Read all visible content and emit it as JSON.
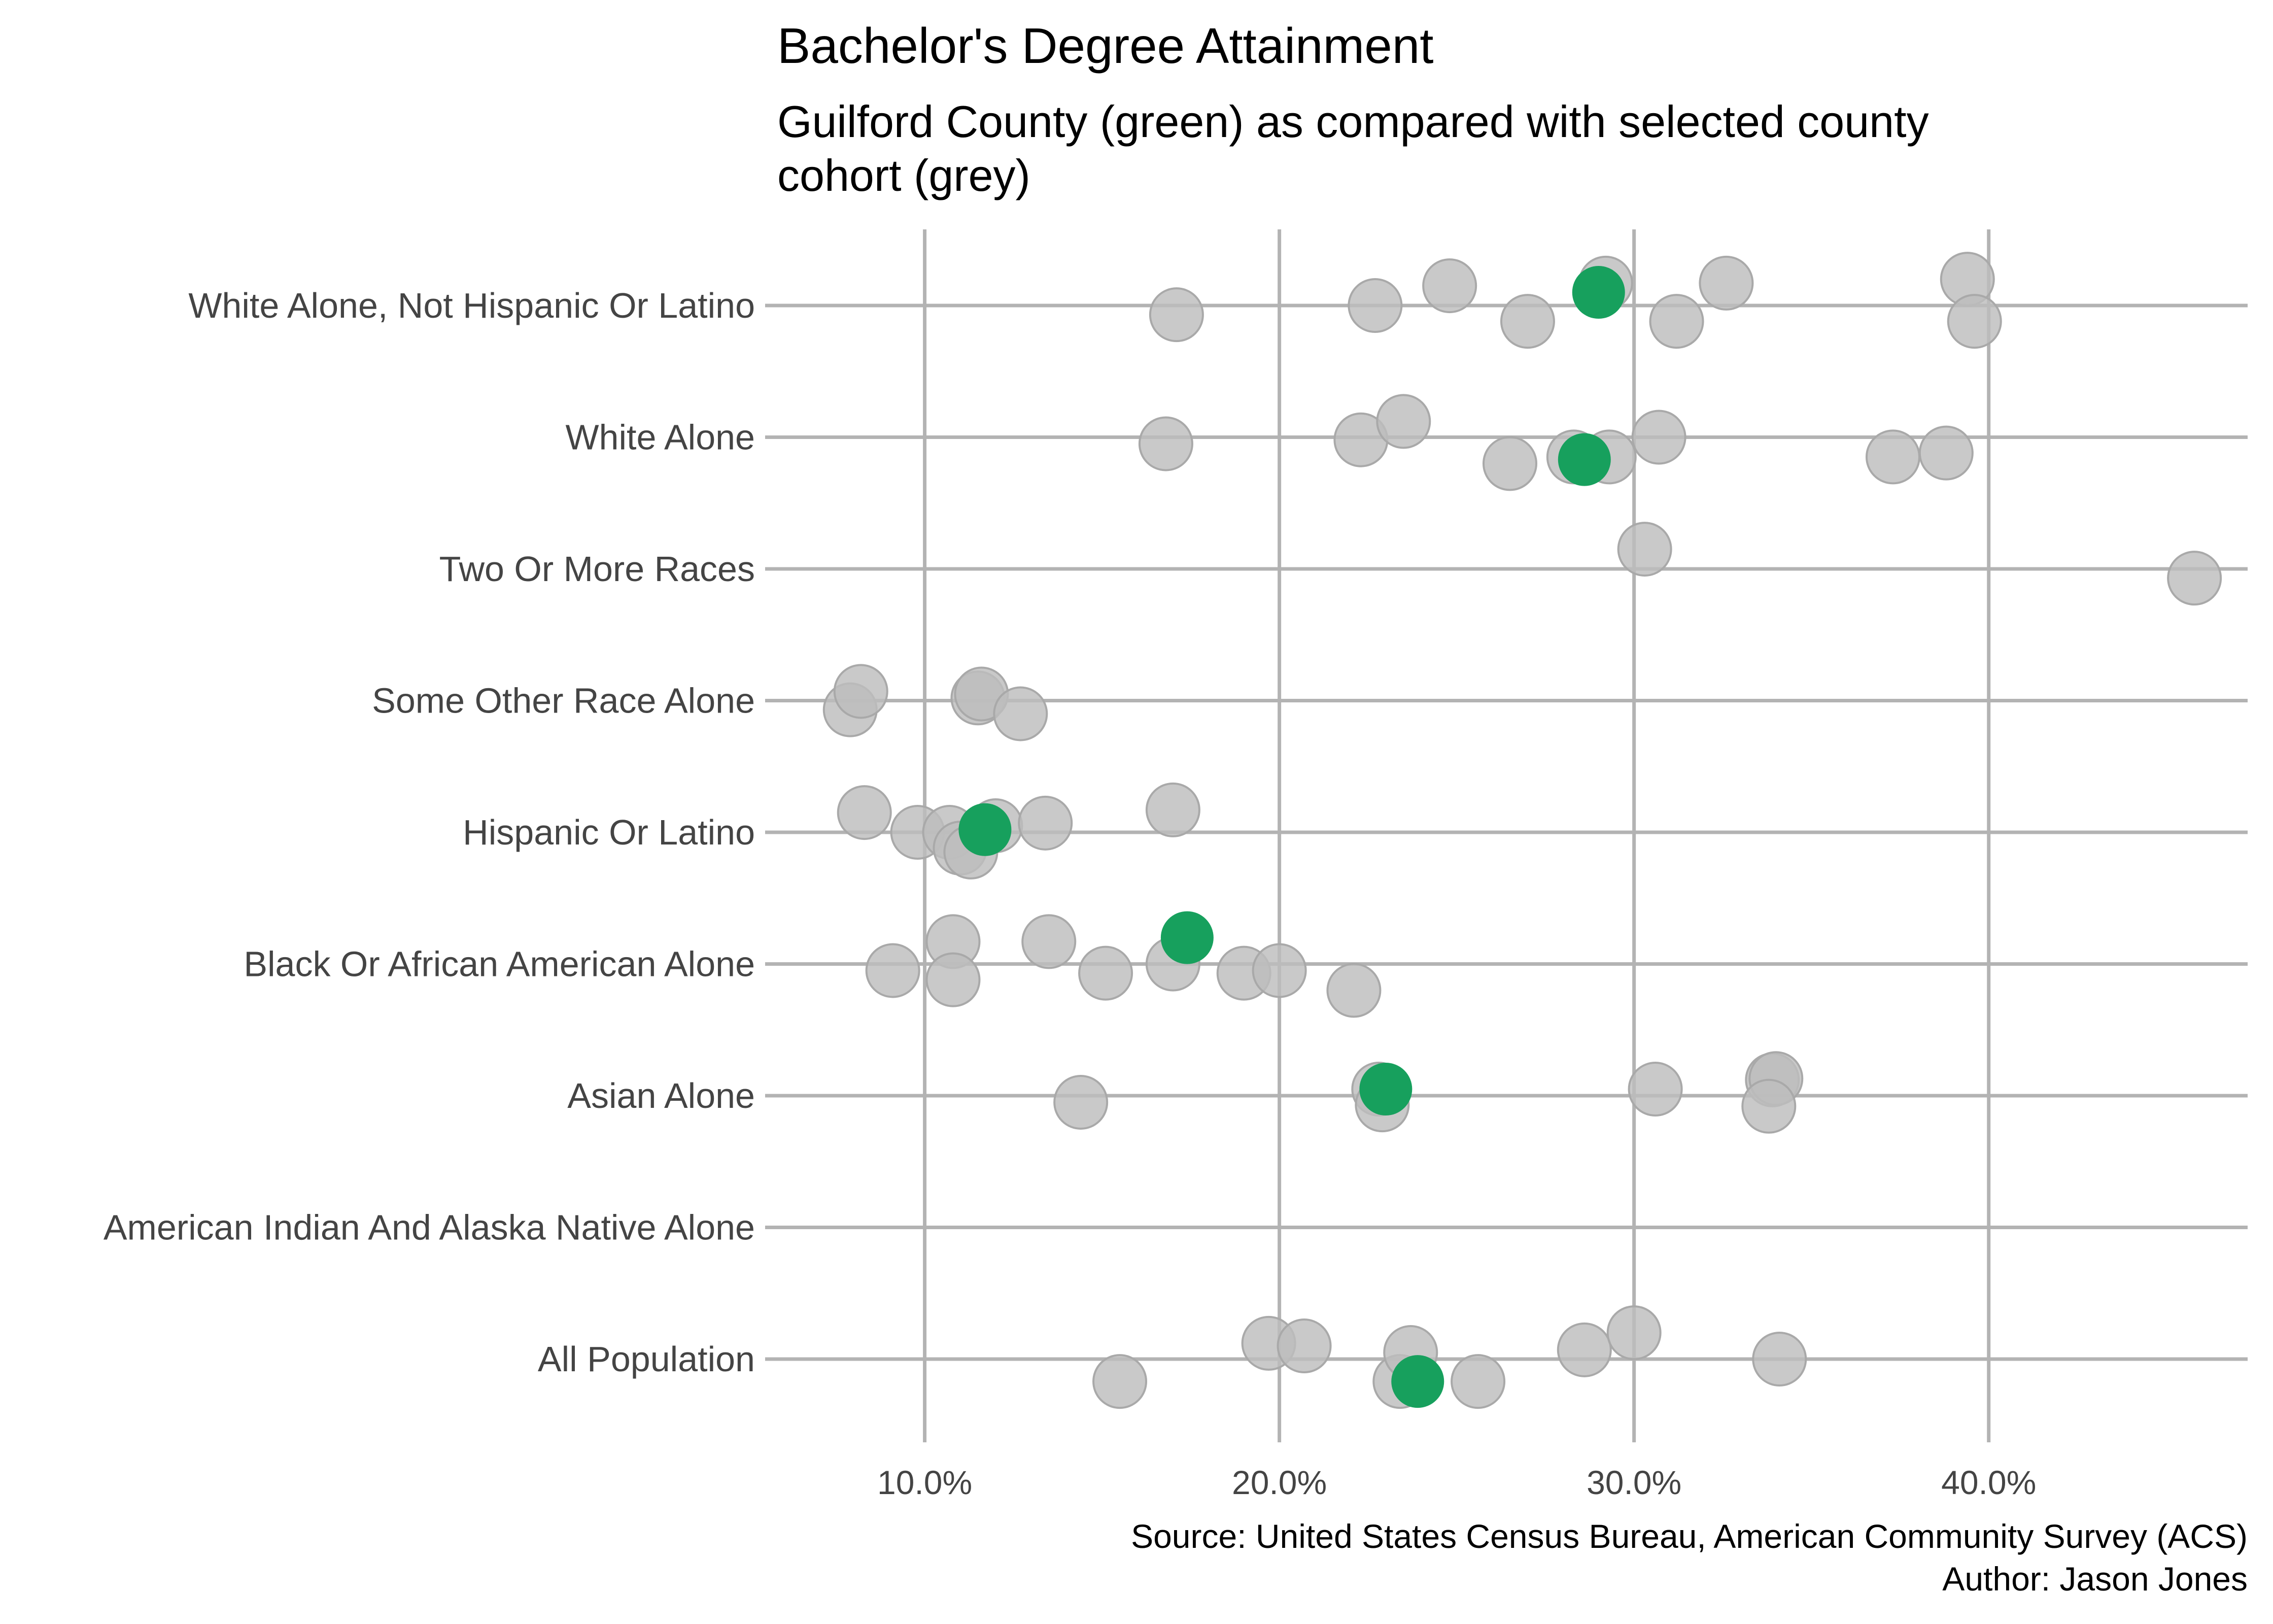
{
  "chart_data": {
    "type": "scatter",
    "title": "Bachelor's Degree Attainment",
    "subtitle_lines": [
      "Guilford County (green) as compared with selected county",
      "cohort (grey)"
    ],
    "caption_lines": [
      "Source: United States Census Bureau, American Community Survey (ACS)",
      "Author: Jason Jones"
    ],
    "categories": [
      "All Population",
      "American Indian And Alaska Native Alone",
      "Asian Alone",
      "Black Or African American Alone",
      "Hispanic Or Latino",
      "Some Other Race Alone",
      "Two Or More Races",
      "White Alone",
      "White Alone, Not Hispanic Or Latino"
    ],
    "x_ticks": [
      10,
      20,
      30,
      40
    ],
    "x_tick_labels": [
      "10.0%",
      "20.0%",
      "30.0%",
      "40.0%"
    ],
    "xlim": [
      5.5,
      47.3
    ],
    "grid": true,
    "colors": {
      "highlight": "#17a05d",
      "cohort": "#bdbdbd",
      "grid": "#b3b3b3"
    },
    "series": [
      {
        "name": "cohort",
        "points": [
          {
            "category": "All Population",
            "x": 15.5,
            "jitter": -0.17
          },
          {
            "category": "All Population",
            "x": 19.7,
            "jitter": 0.12
          },
          {
            "category": "All Population",
            "x": 20.7,
            "jitter": 0.1
          },
          {
            "category": "All Population",
            "x": 23.4,
            "jitter": -0.17
          },
          {
            "category": "All Population",
            "x": 23.7,
            "jitter": 0.05
          },
          {
            "category": "All Population",
            "x": 25.6,
            "jitter": -0.17
          },
          {
            "category": "All Population",
            "x": 28.6,
            "jitter": 0.07
          },
          {
            "category": "All Population",
            "x": 30.0,
            "jitter": 0.2
          },
          {
            "category": "All Population",
            "x": 34.1,
            "jitter": 0.0
          },
          {
            "category": "Asian Alone",
            "x": 14.4,
            "jitter": -0.05
          },
          {
            "category": "Asian Alone",
            "x": 22.8,
            "jitter": 0.05
          },
          {
            "category": "Asian Alone",
            "x": 22.9,
            "jitter": -0.07
          },
          {
            "category": "Asian Alone",
            "x": 30.6,
            "jitter": 0.05
          },
          {
            "category": "Asian Alone",
            "x": 33.9,
            "jitter": 0.12
          },
          {
            "category": "Asian Alone",
            "x": 34.0,
            "jitter": 0.13
          },
          {
            "category": "Asian Alone",
            "x": 33.8,
            "jitter": -0.08
          },
          {
            "category": "Black Or African American Alone",
            "x": 9.1,
            "jitter": -0.05
          },
          {
            "category": "Black Or African American Alone",
            "x": 10.8,
            "jitter": 0.17
          },
          {
            "category": "Black Or African American Alone",
            "x": 10.8,
            "jitter": -0.12
          },
          {
            "category": "Black Or African American Alone",
            "x": 13.5,
            "jitter": 0.17
          },
          {
            "category": "Black Or African American Alone",
            "x": 15.1,
            "jitter": -0.07
          },
          {
            "category": "Black Or African American Alone",
            "x": 17.0,
            "jitter": 0.0
          },
          {
            "category": "Black Or African American Alone",
            "x": 19.0,
            "jitter": -0.07
          },
          {
            "category": "Black Or African American Alone",
            "x": 20.0,
            "jitter": -0.05
          },
          {
            "category": "Black Or African American Alone",
            "x": 22.1,
            "jitter": -0.2
          },
          {
            "category": "Hispanic Or Latino",
            "x": 8.3,
            "jitter": 0.15
          },
          {
            "category": "Hispanic Or Latino",
            "x": 9.8,
            "jitter": 0.0
          },
          {
            "category": "Hispanic Or Latino",
            "x": 10.7,
            "jitter": 0.0
          },
          {
            "category": "Hispanic Or Latino",
            "x": 11.0,
            "jitter": -0.12
          },
          {
            "category": "Hispanic Or Latino",
            "x": 11.3,
            "jitter": -0.15
          },
          {
            "category": "Hispanic Or Latino",
            "x": 12.0,
            "jitter": 0.05
          },
          {
            "category": "Hispanic Or Latino",
            "x": 13.4,
            "jitter": 0.07
          },
          {
            "category": "Hispanic Or Latino",
            "x": 17.0,
            "jitter": 0.17
          },
          {
            "category": "Some Other Race Alone",
            "x": 7.9,
            "jitter": -0.07
          },
          {
            "category": "Some Other Race Alone",
            "x": 8.2,
            "jitter": 0.07
          },
          {
            "category": "Some Other Race Alone",
            "x": 11.5,
            "jitter": 0.02
          },
          {
            "category": "Some Other Race Alone",
            "x": 11.6,
            "jitter": 0.05
          },
          {
            "category": "Some Other Race Alone",
            "x": 12.7,
            "jitter": -0.1
          },
          {
            "category": "Two Or More Races",
            "x": 30.3,
            "jitter": 0.15
          },
          {
            "category": "Two Or More Races",
            "x": 45.8,
            "jitter": -0.07
          },
          {
            "category": "White Alone",
            "x": 16.8,
            "jitter": -0.05
          },
          {
            "category": "White Alone",
            "x": 22.3,
            "jitter": -0.02
          },
          {
            "category": "White Alone",
            "x": 23.5,
            "jitter": 0.12
          },
          {
            "category": "White Alone",
            "x": 26.5,
            "jitter": -0.2
          },
          {
            "category": "White Alone",
            "x": 28.3,
            "jitter": -0.15
          },
          {
            "category": "White Alone",
            "x": 29.3,
            "jitter": -0.15
          },
          {
            "category": "White Alone",
            "x": 30.7,
            "jitter": 0.0
          },
          {
            "category": "White Alone",
            "x": 37.3,
            "jitter": -0.15
          },
          {
            "category": "White Alone",
            "x": 38.8,
            "jitter": -0.12
          },
          {
            "category": "White Alone, Not Hispanic Or Latino",
            "x": 17.1,
            "jitter": -0.07
          },
          {
            "category": "White Alone, Not Hispanic Or Latino",
            "x": 22.7,
            "jitter": 0.0
          },
          {
            "category": "White Alone, Not Hispanic Or Latino",
            "x": 24.8,
            "jitter": 0.15
          },
          {
            "category": "White Alone, Not Hispanic Or Latino",
            "x": 27.0,
            "jitter": -0.12
          },
          {
            "category": "White Alone, Not Hispanic Or Latino",
            "x": 29.2,
            "jitter": 0.17
          },
          {
            "category": "White Alone, Not Hispanic Or Latino",
            "x": 31.2,
            "jitter": -0.12
          },
          {
            "category": "White Alone, Not Hispanic Or Latino",
            "x": 32.6,
            "jitter": 0.17
          },
          {
            "category": "White Alone, Not Hispanic Or Latino",
            "x": 39.4,
            "jitter": 0.2
          },
          {
            "category": "White Alone, Not Hispanic Or Latino",
            "x": 39.6,
            "jitter": -0.12
          }
        ]
      },
      {
        "name": "Guilford County",
        "points": [
          {
            "category": "All Population",
            "x": 23.9,
            "jitter": -0.17
          },
          {
            "category": "Asian Alone",
            "x": 23.0,
            "jitter": 0.05
          },
          {
            "category": "Black Or African American Alone",
            "x": 17.4,
            "jitter": 0.2
          },
          {
            "category": "Hispanic Or Latino",
            "x": 11.7,
            "jitter": 0.02
          },
          {
            "category": "White Alone",
            "x": 28.6,
            "jitter": -0.17
          },
          {
            "category": "White Alone, Not Hispanic Or Latino",
            "x": 29.0,
            "jitter": 0.1
          }
        ]
      }
    ]
  }
}
